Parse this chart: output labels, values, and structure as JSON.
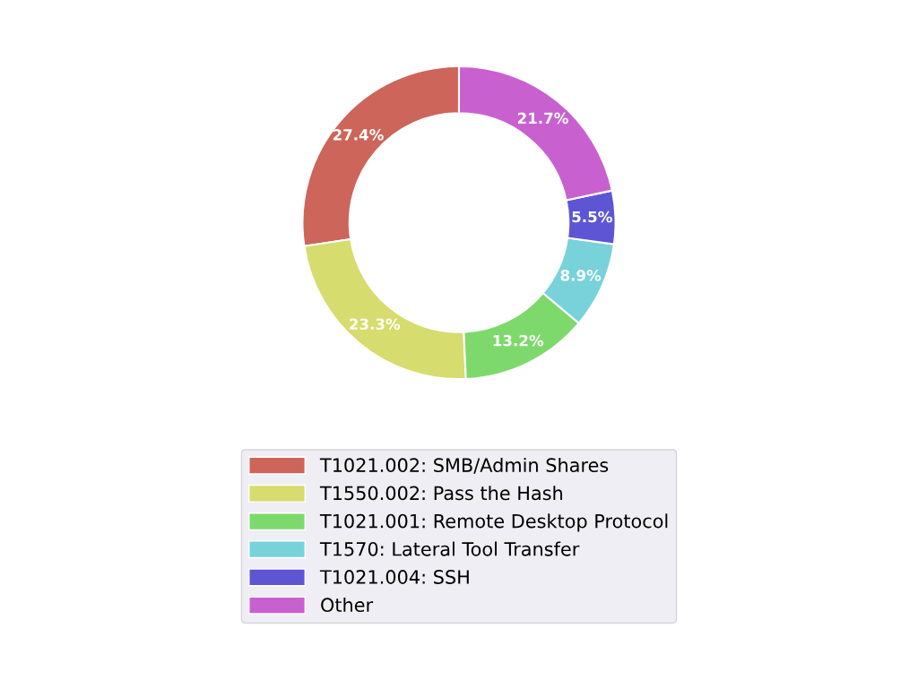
{
  "chart_data": {
    "type": "donut",
    "categories": [
      "T1021.002: SMB/Admin Shares",
      "T1550.002: Pass the Hash",
      "T1021.001: Remote Desktop Protocol",
      "T1570: Lateral Tool Transfer",
      "T1021.004: SSH",
      "Other"
    ],
    "values": [
      27.4,
      23.3,
      13.2,
      8.9,
      5.5,
      21.7
    ],
    "value_labels": [
      "27.4%",
      "23.3%",
      "13.2%",
      "8.9%",
      "5.5%",
      "21.7%"
    ],
    "colors": [
      "#cd655a",
      "#d6dc6e",
      "#7ed96c",
      "#78d2da",
      "#5e55d4",
      "#c960d0"
    ],
    "legend": "bottom"
  }
}
